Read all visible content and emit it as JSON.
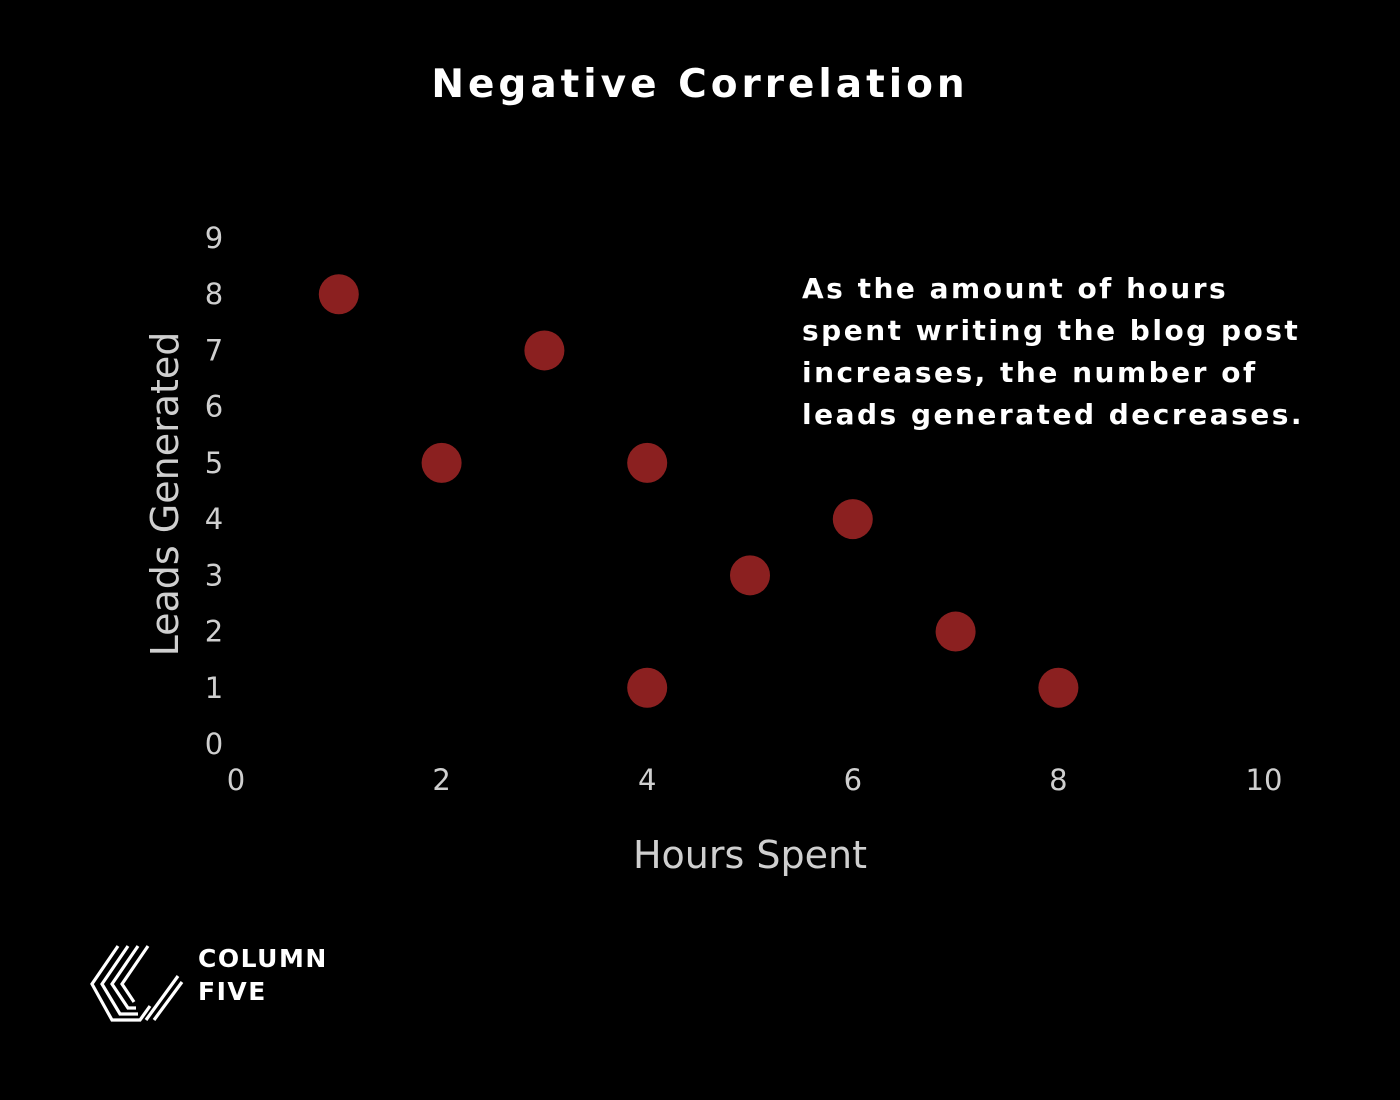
{
  "chart_data": {
    "type": "scatter",
    "title": "Negative Correlation",
    "xlabel": "Hours Spent",
    "ylabel": "Leads Generated",
    "xlim": [
      0,
      10
    ],
    "ylim": [
      0,
      9
    ],
    "x_ticks": [
      "0",
      "2",
      "4",
      "6",
      "8",
      "10"
    ],
    "y_ticks": [
      "0",
      "1",
      "2",
      "3",
      "4",
      "5",
      "6",
      "7",
      "8",
      "9"
    ],
    "grid": false,
    "points": [
      {
        "x": 1,
        "y": 8
      },
      {
        "x": 3,
        "y": 7
      },
      {
        "x": 2,
        "y": 5
      },
      {
        "x": 4,
        "y": 5
      },
      {
        "x": 6,
        "y": 4
      },
      {
        "x": 5,
        "y": 3
      },
      {
        "x": 7,
        "y": 2
      },
      {
        "x": 4,
        "y": 1
      },
      {
        "x": 8,
        "y": 1
      }
    ],
    "marker_color": "#8b2020",
    "annotation": [
      "As the amount of hours",
      "spent writing the blog post",
      "increases, the number of",
      "leads generated decreases."
    ]
  },
  "colors": {
    "background": "#000000",
    "title": "#ffffff",
    "axis_text": "#cfcfcf"
  },
  "logo": {
    "line1": "COLUMN",
    "line2": "FIVE"
  }
}
